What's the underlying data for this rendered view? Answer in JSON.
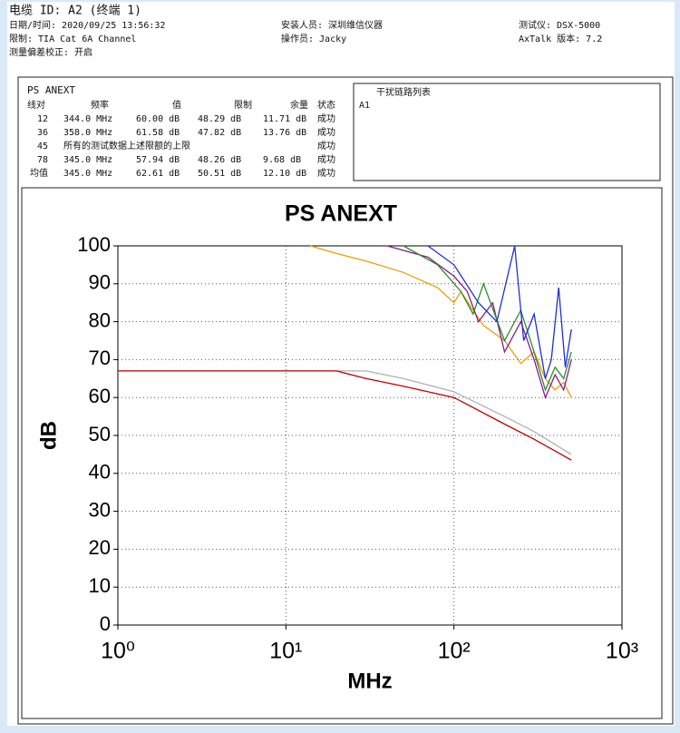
{
  "header": {
    "cable_id": "电缆 ID: A2 (终端 1)",
    "datetime": "日期/时间: 2020/09/25  13:56:32",
    "limit": "限制: TIA Cat 6A Channel",
    "correction": "测量偏差校正: 开启",
    "installer": "安装人员: 深圳维信仪器",
    "operator": "操作员: Jacky",
    "tester": "测试仪: DSX-5000",
    "axtalk": "AxTalk 版本: 7.2"
  },
  "table": {
    "title": "PS ANEXT",
    "columns": [
      "线对",
      "频率",
      "值",
      "限制",
      "余量",
      "状态"
    ],
    "rows": [
      [
        "12",
        "344.0 MHz",
        "60.00 dB",
        "48.29 dB",
        "11.71 dB",
        "成功"
      ],
      [
        "36",
        "358.0 MHz",
        "61.58 dB",
        "47.82 dB",
        "13.76 dB",
        "成功"
      ],
      [
        "45",
        "所有的测试数据上述限额的上限",
        "成功"
      ],
      [
        "78",
        "345.0 MHz",
        "57.94 dB",
        "48.26 dB",
        "9.68 dB",
        "成功"
      ],
      [
        "均值",
        "345.0 MHz",
        "62.61 dB",
        "50.51 dB",
        "12.10 dB",
        "成功"
      ]
    ]
  },
  "disturber": {
    "title": "干扰链路列表",
    "items": [
      "A1"
    ]
  },
  "chart_data": {
    "type": "line",
    "title": "PS ANEXT",
    "x_label": "MHz",
    "y_label": "dB",
    "log_x": true,
    "grid": true,
    "xlim": [
      1,
      1000
    ],
    "ylim": [
      0,
      100
    ],
    "xticks": [
      {
        "value": 1,
        "label": "10⁰"
      },
      {
        "value": 10,
        "label": "10¹"
      },
      {
        "value": 100,
        "label": "10²"
      },
      {
        "value": 1000,
        "label": "10³"
      }
    ],
    "yticks": [
      0,
      10,
      20,
      30,
      40,
      50,
      60,
      70,
      80,
      90,
      100
    ],
    "series": [
      {
        "color": "#b0b0b0",
        "x": [
          1,
          20,
          30,
          50,
          100,
          200,
          300,
          500
        ],
        "values": [
          67,
          67,
          67,
          65,
          61.5,
          55,
          51,
          45
        ]
      },
      {
        "color": "#c00000",
        "x": [
          1,
          20,
          30,
          50,
          100,
          200,
          300,
          500
        ],
        "values": [
          67,
          67,
          65,
          63,
          60,
          53,
          49,
          43.5
        ]
      },
      {
        "color": "#e8a000",
        "x": [
          14,
          20,
          30,
          50,
          80,
          100,
          110,
          130,
          150,
          200,
          250,
          300,
          350,
          400,
          450,
          500
        ],
        "values": [
          100,
          98,
          96,
          93,
          89,
          85,
          88,
          83,
          79,
          75,
          69,
          72,
          65,
          62,
          64,
          60
        ]
      },
      {
        "color": "#8b1a8b",
        "x": [
          40,
          70,
          100,
          120,
          140,
          170,
          200,
          250,
          300,
          350,
          400,
          450,
          500
        ],
        "values": [
          100,
          97,
          92,
          88,
          80,
          85,
          72,
          80,
          70,
          60,
          66,
          62,
          70
        ]
      },
      {
        "color": "#2e8b2e",
        "x": [
          50,
          80,
          110,
          130,
          150,
          200,
          250,
          300,
          350,
          400,
          450,
          500
        ],
        "values": [
          100,
          95,
          88,
          82,
          90,
          75,
          83,
          72,
          62,
          68,
          65,
          72
        ]
      },
      {
        "color": "#1f2fd0",
        "x": [
          70,
          100,
          140,
          180,
          230,
          260,
          300,
          350,
          380,
          420,
          460,
          500
        ],
        "values": [
          100,
          95,
          85,
          80,
          100,
          75,
          82,
          65,
          70,
          89,
          68,
          78
        ]
      }
    ]
  }
}
